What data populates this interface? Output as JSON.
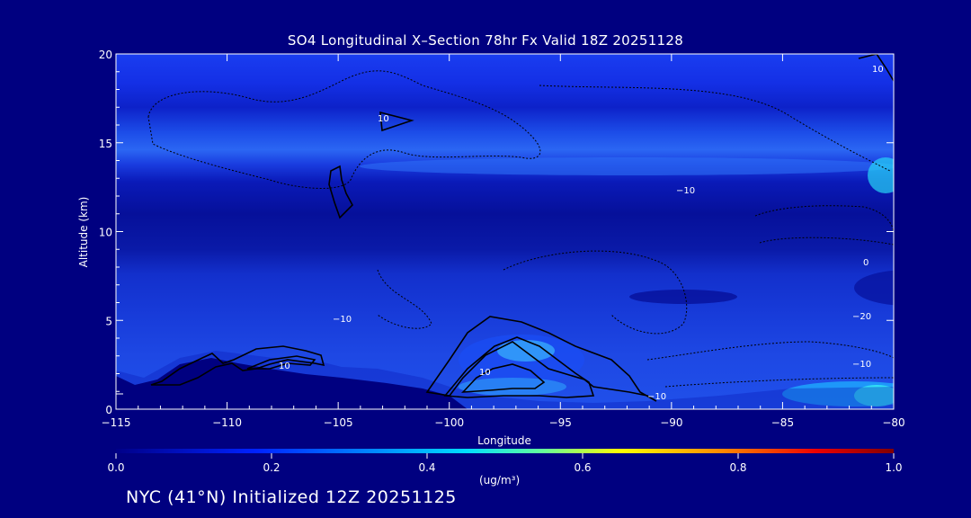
{
  "chart_data": {
    "type": "heatmap",
    "title": "SO4 Longitudinal X–Section 78hr  Fx Valid 18Z 20251128",
    "xlabel": "Longitude",
    "ylabel": "Altitude (km)",
    "xlim": [
      -115,
      -80
    ],
    "ylim": [
      0,
      20
    ],
    "x_ticks": [
      -115,
      -110,
      -105,
      -100,
      -95,
      -90,
      -85,
      -80
    ],
    "x_tick_labels": [
      "−115",
      "−110",
      "−105",
      "−100",
      "−95",
      "−90",
      "−85",
      "−80"
    ],
    "y_ticks": [
      0,
      5,
      10,
      15,
      20
    ],
    "y_tick_labels": [
      "0",
      "5",
      "10",
      "15",
      "20"
    ],
    "colorbar": {
      "min": 0.0,
      "max": 1.0,
      "ticks": [
        0.0,
        0.2,
        0.4,
        0.6,
        0.8,
        1.0
      ],
      "tick_labels": [
        "0.0",
        "0.2",
        "0.4",
        "0.6",
        "0.8",
        "1.0"
      ],
      "units": "(ug/m³)",
      "colormap": [
        "#00008b",
        "#0033ff",
        "#00aaff",
        "#00ffff",
        "#ffff00",
        "#ff6600",
        "#ff0000",
        "#800000"
      ]
    },
    "contour_labels": [
      "10",
      "10",
      "10",
      "10",
      "−10",
      "−10",
      "−20",
      "−10",
      "0",
      "−10"
    ],
    "footer": "NYC (41°N) Initialized 12Z 20251125"
  }
}
